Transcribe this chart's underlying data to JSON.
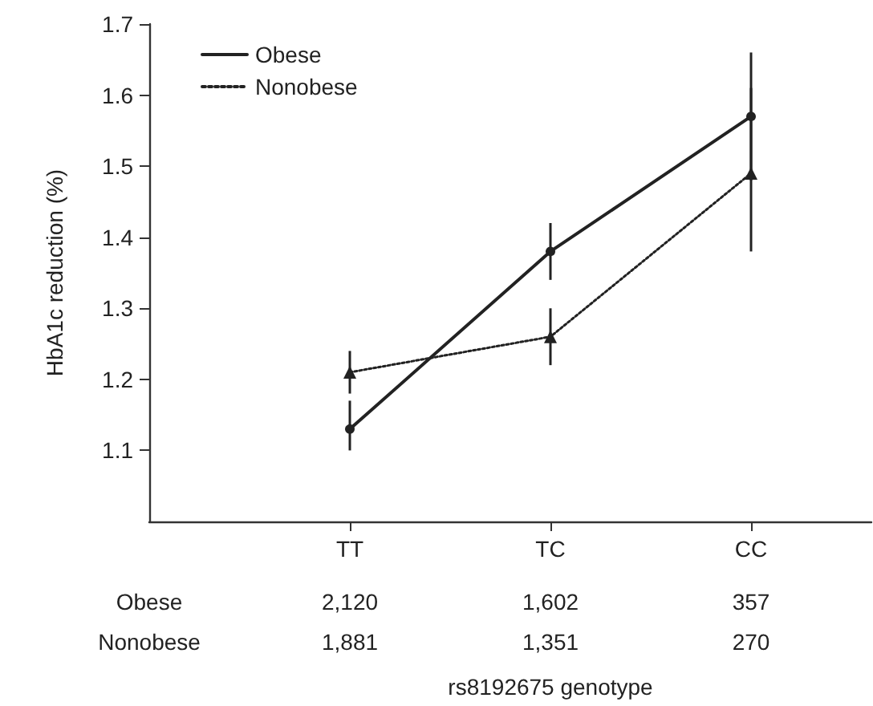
{
  "chart_data": {
    "type": "line",
    "xlabel": "rs8192675 genotype",
    "ylabel": "HbA1c reduction (%)",
    "categories": [
      "TT",
      "TC",
      "CC"
    ],
    "series": [
      {
        "name": "Obese",
        "color": "#222222",
        "marker": "circle",
        "line_style": "solid",
        "values": [
          1.13,
          1.38,
          1.57
        ],
        "errors": [
          [
            1.1,
            1.17
          ],
          [
            1.34,
            1.42
          ],
          [
            1.48,
            1.66
          ]
        ]
      },
      {
        "name": "Nonobese",
        "color": "#222222",
        "marker": "triangle",
        "line_style": "dotted",
        "values": [
          1.21,
          1.26,
          1.49
        ],
        "errors": [
          [
            1.18,
            1.24
          ],
          [
            1.22,
            1.3
          ],
          [
            1.38,
            1.61
          ]
        ]
      }
    ],
    "ylim": [
      1.0,
      1.7
    ],
    "yticks": [
      1.1,
      1.2,
      1.3,
      1.4,
      1.5,
      1.6,
      1.7
    ],
    "legend": "top left",
    "grid": false,
    "annotations": [
      "Obese",
      "2,120",
      "1,602",
      "357",
      "Nonobese",
      "1,881",
      "1,351",
      "270"
    ]
  }
}
